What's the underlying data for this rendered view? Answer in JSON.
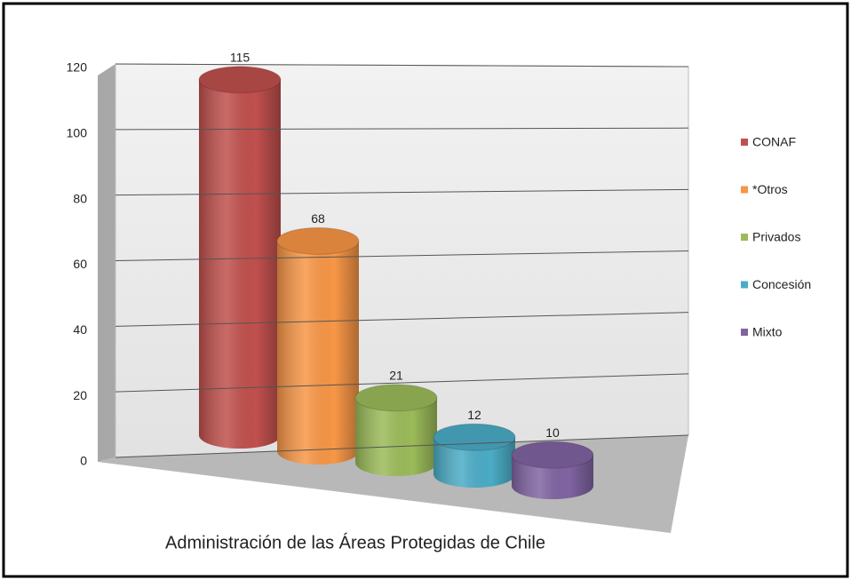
{
  "chart_data": {
    "type": "bar3d",
    "title": "Administración de las Áreas Protegidas de Chile",
    "categories": [
      "CONAF",
      "*Otros",
      "Privados",
      "Concesión",
      "Mixto"
    ],
    "values": [
      115,
      68,
      21,
      12,
      10
    ],
    "colors": [
      "#c0504d",
      "#f79646",
      "#9bbb59",
      "#4bacc6",
      "#8064a2"
    ],
    "ylim": [
      0,
      120
    ],
    "yticks": [
      0,
      20,
      40,
      60,
      80,
      100,
      120
    ],
    "grid": true,
    "legend": "right"
  }
}
